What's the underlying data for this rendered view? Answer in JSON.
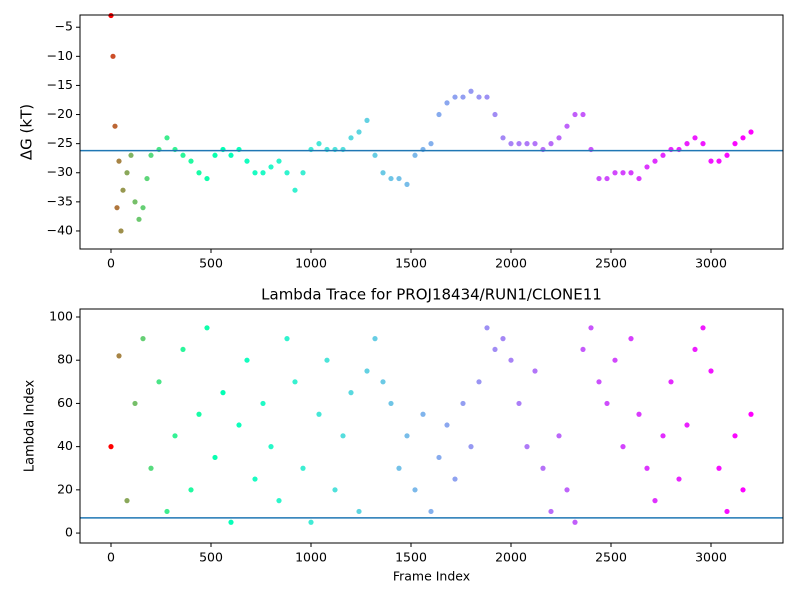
{
  "chart_data": [
    {
      "type": "scatter",
      "ylabel": "ΔG (kT)",
      "colormap": "rainbow_r",
      "hline": -26.2,
      "hline_color": "#1f77b4",
      "xlim": [
        -155,
        3360
      ],
      "ylim": [
        -43.1,
        -2.9
      ],
      "xticks": [
        0,
        500,
        1000,
        1500,
        2000,
        2500,
        3000
      ],
      "yticks": [
        {
          "value": -40,
          "label": "−40"
        },
        {
          "value": -35,
          "label": "−35"
        },
        {
          "value": -30,
          "label": "−30"
        },
        {
          "value": -25,
          "label": "−25"
        },
        {
          "value": -20,
          "label": "−20"
        },
        {
          "value": -15,
          "label": "−15"
        },
        {
          "value": -10,
          "label": "−10"
        },
        {
          "value": -5,
          "label": "−5"
        }
      ],
      "x": [
        0,
        10,
        20,
        30,
        40,
        50,
        60,
        80,
        100,
        120,
        140,
        160,
        180,
        200,
        240,
        280,
        320,
        360,
        400,
        440,
        480,
        520,
        560,
        600,
        640,
        680,
        720,
        760,
        800,
        840,
        880,
        920,
        960,
        1000,
        1040,
        1080,
        1120,
        1160,
        1200,
        1240,
        1280,
        1320,
        1360,
        1400,
        1440,
        1480,
        1520,
        1560,
        1600,
        1640,
        1680,
        1720,
        1760,
        1800,
        1840,
        1880,
        1920,
        1960,
        2000,
        2040,
        2080,
        2120,
        2160,
        2200,
        2240,
        2280,
        2320,
        2360,
        2400,
        2440,
        2480,
        2520,
        2560,
        2600,
        2640,
        2680,
        2720,
        2760,
        2800,
        2840,
        2880,
        2920,
        2960,
        3000,
        3040,
        3080,
        3120,
        3160,
        3200
      ],
      "values": [
        -3,
        -10,
        -22,
        -36,
        -28,
        -40,
        -33,
        -30,
        -27,
        -35,
        -38,
        -36,
        -31,
        -27,
        -26,
        -24,
        -26,
        -27,
        -28,
        -30,
        -31,
        -27,
        -26,
        -27,
        -26,
        -28,
        -30,
        -30,
        -29,
        -28,
        -30,
        -33,
        -30,
        -26,
        -25,
        -26,
        -26,
        -26,
        -24,
        -23,
        -21,
        -27,
        -30,
        -31,
        -31,
        -32,
        -27,
        -26,
        -25,
        -20,
        -18,
        -17,
        -17,
        -16,
        -17,
        -17,
        -20,
        -24,
        -25,
        -25,
        -25,
        -25,
        -26,
        -25,
        -24,
        -22,
        -20,
        -20,
        -26,
        -31,
        -31,
        -30,
        -30,
        -30,
        -31,
        -29,
        -28,
        -27,
        -26,
        -26,
        -25,
        -24,
        -25,
        -28,
        -28,
        -27,
        -25,
        -24,
        -23
      ]
    },
    {
      "type": "scatter",
      "title": "Lambda Trace for PROJ18434/RUN1/CLONE11",
      "xlabel": "Frame Index",
      "ylabel": "Lambda Index",
      "colormap": "rainbow_r",
      "hline": 7,
      "hline_color": "#1f77b4",
      "xlim": [
        -155,
        3360
      ],
      "ylim": [
        -4.6,
        103.7
      ],
      "xticks": [
        0,
        500,
        1000,
        1500,
        2000,
        2500,
        3000
      ],
      "yticks": [
        0,
        20,
        40,
        60,
        80,
        100
      ],
      "x": [
        0,
        40,
        80,
        120,
        160,
        200,
        240,
        280,
        320,
        360,
        400,
        440,
        480,
        520,
        560,
        600,
        640,
        680,
        720,
        760,
        800,
        840,
        880,
        920,
        960,
        1000,
        1040,
        1080,
        1120,
        1160,
        1200,
        1240,
        1280,
        1320,
        1360,
        1400,
        1440,
        1480,
        1520,
        1560,
        1600,
        1640,
        1680,
        1720,
        1760,
        1800,
        1840,
        1880,
        1920,
        1960,
        2000,
        2040,
        2080,
        2120,
        2160,
        2200,
        2240,
        2280,
        2320,
        2360,
        2400,
        2440,
        2480,
        2520,
        2560,
        2600,
        2640,
        2680,
        2720,
        2760,
        2800,
        2840,
        2880,
        2920,
        2960,
        3000,
        3040,
        3080,
        3120,
        3160,
        3200
      ],
      "values": [
        40,
        82,
        15,
        60,
        90,
        30,
        70,
        10,
        45,
        85,
        20,
        55,
        95,
        35,
        65,
        5,
        50,
        80,
        25,
        60,
        40,
        15,
        90,
        70,
        30,
        5,
        55,
        80,
        20,
        45,
        65,
        10,
        75,
        90,
        70,
        60,
        30,
        45,
        20,
        55,
        10,
        35,
        50,
        25,
        60,
        40,
        70,
        95,
        85,
        90,
        80,
        60,
        40,
        75,
        30,
        10,
        45,
        20,
        5,
        85,
        95,
        70,
        60,
        80,
        40,
        90,
        55,
        30,
        15,
        45,
        70,
        25,
        50,
        85,
        95,
        75,
        30,
        10,
        45,
        20,
        55
      ]
    }
  ]
}
